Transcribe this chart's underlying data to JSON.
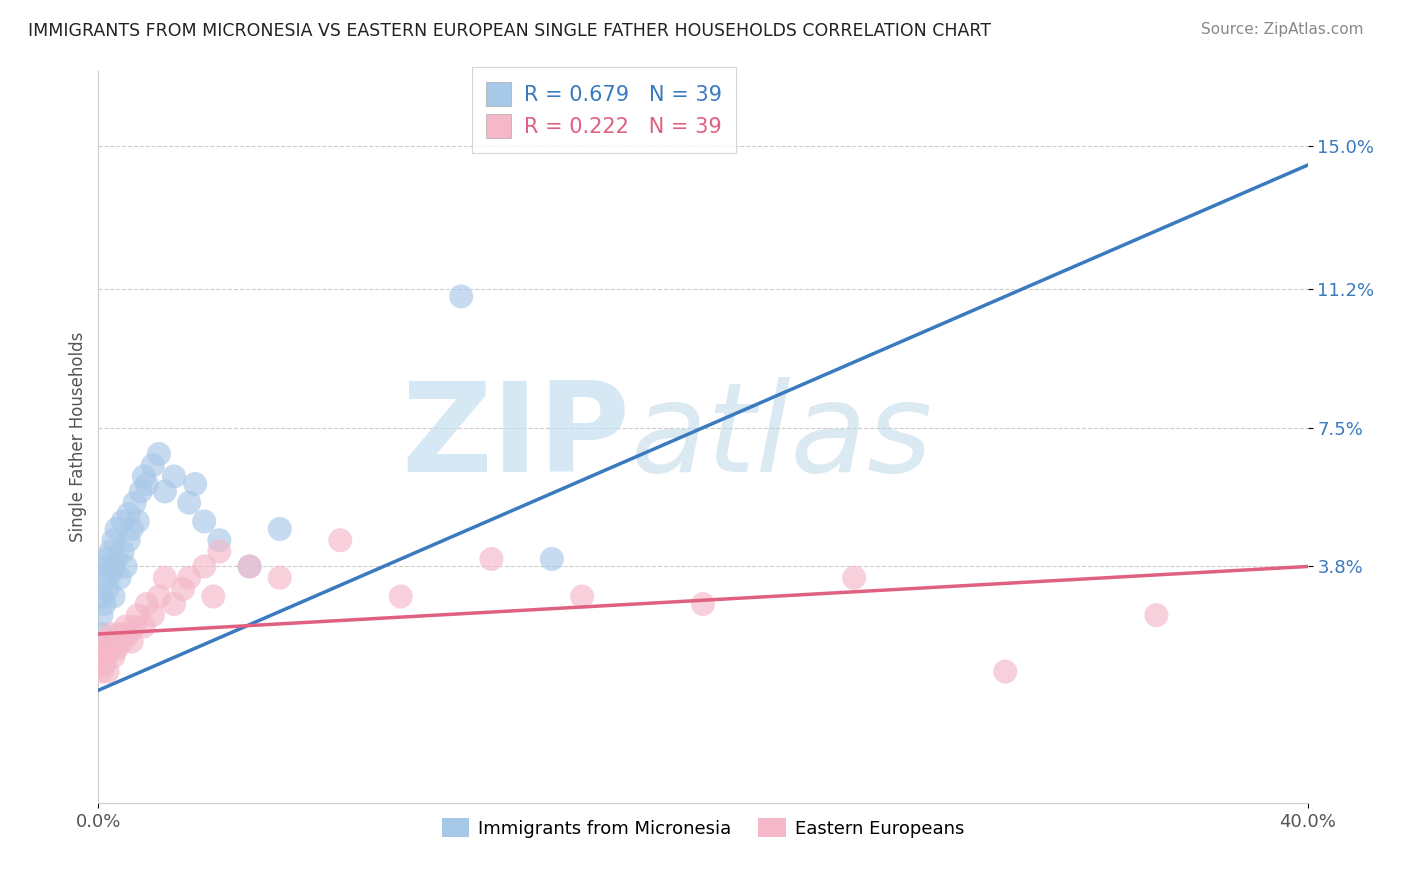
{
  "title": "IMMIGRANTS FROM MICRONESIA VS EASTERN EUROPEAN SINGLE FATHER HOUSEHOLDS CORRELATION CHART",
  "source": "Source: ZipAtlas.com",
  "ylabel": "Single Father Households",
  "xlim": [
    0.0,
    0.4
  ],
  "ylim": [
    -0.025,
    0.17
  ],
  "yticks": [
    0.038,
    0.075,
    0.112,
    0.15
  ],
  "ytick_labels": [
    "3.8%",
    "7.5%",
    "11.2%",
    "15.0%"
  ],
  "xticks": [
    0.0,
    0.4
  ],
  "xtick_labels": [
    "0.0%",
    "40.0%"
  ],
  "blue_R": 0.679,
  "blue_N": 39,
  "pink_R": 0.222,
  "pink_N": 39,
  "blue_color": "#a8c8e8",
  "pink_color": "#f4b8c8",
  "blue_line_color": "#3a7abf",
  "pink_line_color": "#e06080",
  "legend_label_blue": "Immigrants from Micronesia",
  "legend_label_pink": "Eastern Europeans",
  "watermark_zip": "ZIP",
  "watermark_atlas": "atlas",
  "blue_line_x0": 0.0,
  "blue_line_y0": 0.005,
  "blue_line_x1": 0.4,
  "blue_line_y1": 0.145,
  "pink_line_x0": 0.0,
  "pink_line_y0": 0.02,
  "pink_line_x1": 0.4,
  "pink_line_y1": 0.038,
  "blue_scatter_x": [
    0.001,
    0.001,
    0.001,
    0.002,
    0.002,
    0.002,
    0.003,
    0.003,
    0.004,
    0.004,
    0.005,
    0.005,
    0.005,
    0.006,
    0.006,
    0.007,
    0.008,
    0.008,
    0.009,
    0.01,
    0.01,
    0.011,
    0.012,
    0.013,
    0.014,
    0.015,
    0.016,
    0.018,
    0.02,
    0.022,
    0.025,
    0.03,
    0.032,
    0.035,
    0.04,
    0.05,
    0.06,
    0.12,
    0.15
  ],
  "blue_scatter_y": [
    0.025,
    0.03,
    0.02,
    0.035,
    0.028,
    0.038,
    0.04,
    0.032,
    0.042,
    0.036,
    0.038,
    0.03,
    0.045,
    0.04,
    0.048,
    0.035,
    0.042,
    0.05,
    0.038,
    0.045,
    0.052,
    0.048,
    0.055,
    0.05,
    0.058,
    0.062,
    0.06,
    0.065,
    0.068,
    0.058,
    0.062,
    0.055,
    0.06,
    0.05,
    0.045,
    0.038,
    0.048,
    0.11,
    0.04
  ],
  "pink_scatter_x": [
    0.001,
    0.001,
    0.002,
    0.002,
    0.003,
    0.003,
    0.004,
    0.004,
    0.005,
    0.005,
    0.006,
    0.007,
    0.008,
    0.009,
    0.01,
    0.011,
    0.012,
    0.013,
    0.015,
    0.016,
    0.018,
    0.02,
    0.022,
    0.025,
    0.028,
    0.03,
    0.035,
    0.038,
    0.04,
    0.05,
    0.06,
    0.08,
    0.1,
    0.13,
    0.16,
    0.2,
    0.25,
    0.3,
    0.35
  ],
  "pink_scatter_y": [
    0.01,
    0.015,
    0.012,
    0.018,
    0.015,
    0.01,
    0.016,
    0.02,
    0.018,
    0.014,
    0.016,
    0.02,
    0.018,
    0.022,
    0.02,
    0.018,
    0.022,
    0.025,
    0.022,
    0.028,
    0.025,
    0.03,
    0.035,
    0.028,
    0.032,
    0.035,
    0.038,
    0.03,
    0.042,
    0.038,
    0.035,
    0.045,
    0.03,
    0.04,
    0.03,
    0.028,
    0.035,
    0.01,
    0.025
  ]
}
